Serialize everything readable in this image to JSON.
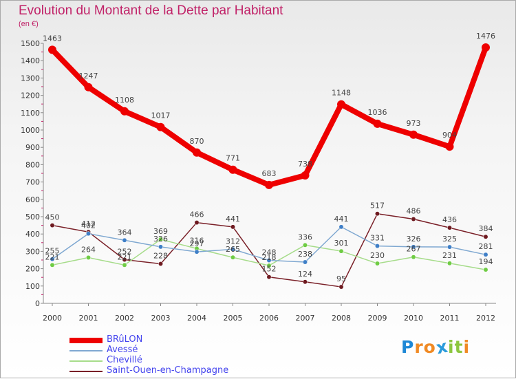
{
  "title": "Evolution du Montant de la Dette par Habitant",
  "subtitle": "(en €)",
  "logo": {
    "letters": [
      "P",
      "r",
      "o",
      "x",
      "i",
      "t",
      "i"
    ],
    "colors": [
      "#1e88d6",
      "#f08a24",
      "#f08a24",
      "#2a9bdb",
      "#8cc63f",
      "#8cc63f",
      "#f08a24"
    ]
  },
  "chart_data": {
    "type": "line",
    "title": "Evolution du Montant de la Dette par Habitant",
    "ylabel": "(en €)",
    "xlabel": "",
    "x": [
      "2000",
      "2001",
      "2002",
      "2003",
      "2004",
      "2005",
      "2006",
      "2007",
      "2008",
      "2009",
      "2010",
      "2011",
      "2012"
    ],
    "ylim": [
      0,
      1500
    ],
    "yticks": [
      "0",
      "100",
      "200",
      "300",
      "400",
      "500",
      "600",
      "700",
      "800",
      "900",
      "1000",
      "1100",
      "1200",
      "1300",
      "1400",
      "1500"
    ],
    "grid": false,
    "legend_position": "bottom-left",
    "series": [
      {
        "name": "BRûLON",
        "color": "#ee0000",
        "point_color": "#ee0000",
        "values": [
          1463,
          1247,
          1108,
          1017,
          870,
          771,
          683,
          738,
          1148,
          1036,
          973,
          904,
          1476
        ],
        "labels": [
          "1463",
          "1247",
          "1108",
          "1017",
          "870",
          "771",
          "683",
          "738",
          "1148",
          "1036",
          "973",
          "904",
          "1476"
        ]
      },
      {
        "name": "Avessé",
        "color": "#7fa8d1",
        "point_color": "#3f7fc7",
        "values": [
          255,
          402,
          364,
          326,
          297,
          312,
          248,
          238,
          441,
          331,
          326,
          325,
          281
        ],
        "labels": [
          "255",
          "402",
          "364",
          "326",
          "297",
          "312",
          "248",
          "238",
          "441",
          "331",
          "326",
          "325",
          "281"
        ]
      },
      {
        "name": "Chevillé",
        "color": "#a6dc8a",
        "point_color": "#6fcc44",
        "values": [
          221,
          264,
          221,
          369,
          316,
          265,
          218,
          336,
          301,
          230,
          267,
          231,
          194
        ],
        "labels": [
          "221",
          "264",
          "221",
          "369",
          "316",
          "265",
          "218",
          "336",
          "301",
          "230",
          "267",
          "231",
          "194"
        ]
      },
      {
        "name": "Saint-Ouen-en-Champagne",
        "color": "#7a2028",
        "point_color": "#6e1a20",
        "values": [
          450,
          412,
          252,
          228,
          466,
          441,
          152,
          124,
          95,
          517,
          486,
          436,
          384
        ],
        "labels": [
          "450",
          "412",
          "252",
          "228",
          "466",
          "441",
          "152",
          "124",
          "95",
          "517",
          "486",
          "436",
          "384"
        ]
      }
    ]
  }
}
